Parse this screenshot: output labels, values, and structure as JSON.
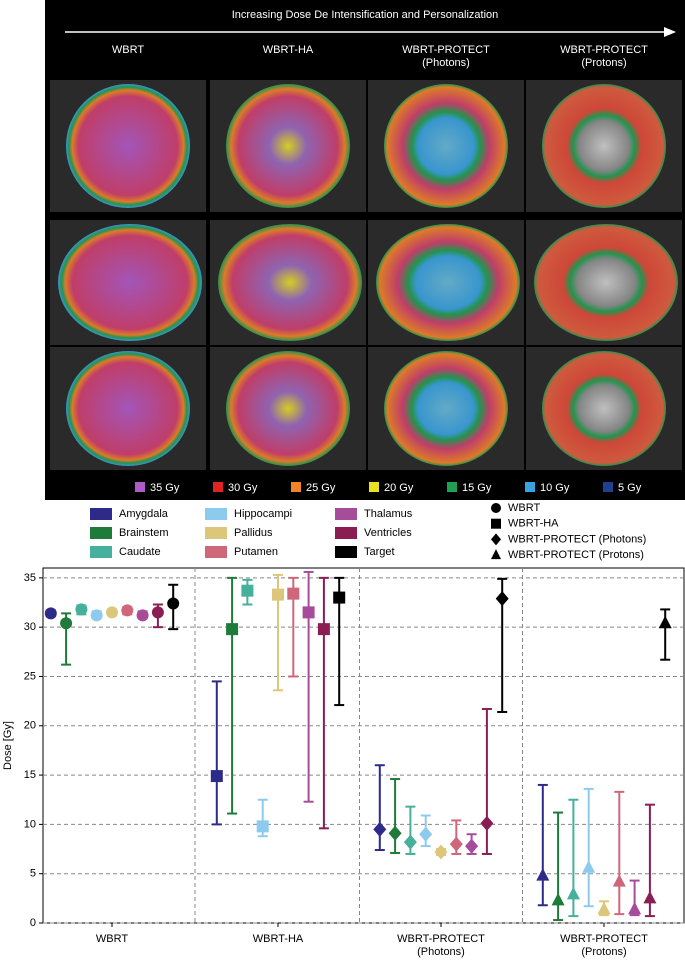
{
  "header": {
    "title": "Increasing Dose De Intensification and Personalization",
    "columns": [
      "WBRT",
      "WBRT-HA",
      "WBRT-PROTECT\n(Photons)",
      "WBRT-PROTECT\n(Protons)"
    ]
  },
  "dose_legend": [
    {
      "label": "35 Gy",
      "color": "#b05ac8"
    },
    {
      "label": "30 Gy",
      "color": "#e02222"
    },
    {
      "label": "25 Gy",
      "color": "#f08428"
    },
    {
      "label": "20 Gy",
      "color": "#e8e020"
    },
    {
      "label": "15 Gy",
      "color": "#22a052"
    },
    {
      "label": "10 Gy",
      "color": "#3aa2e0"
    },
    {
      "label": "5 Gy",
      "color": "#203f8f"
    }
  ],
  "chart_data": {
    "type": "errorbar",
    "y_label": "Dose [Gy]",
    "categories": [
      "WBRT",
      "WBRT-HA",
      "WBRT-PROTECT\n(Photons)",
      "WBRT-PROTECT\n(Protons)"
    ],
    "techniques": [
      {
        "name": "WBRT",
        "marker": "circle"
      },
      {
        "name": "WBRT-HA",
        "marker": "square"
      },
      {
        "name": "WBRT-PROTECT (Photons)",
        "marker": "diamond"
      },
      {
        "name": "WBRT-PROTECT (Protons)",
        "marker": "triangle"
      }
    ],
    "ylim": [
      0,
      36
    ],
    "yticks": [
      0,
      5,
      10,
      15,
      20,
      25,
      30,
      35
    ],
    "grid": true,
    "series": [
      {
        "name": "Amygdala",
        "color": "#2e2a8a",
        "values": [
          31.4,
          14.9,
          9.5,
          4.8
        ],
        "low": [
          31.1,
          10.0,
          7.4,
          1.8
        ],
        "high": [
          31.7,
          24.5,
          16.0,
          14.0
        ]
      },
      {
        "name": "Brainstem",
        "color": "#1e7b3a",
        "values": [
          30.4,
          29.8,
          9.1,
          2.3
        ],
        "low": [
          26.2,
          11.1,
          7.1,
          0.3
        ],
        "high": [
          31.4,
          35.0,
          14.6,
          11.2
        ]
      },
      {
        "name": "Caudate",
        "color": "#45b09c",
        "values": [
          31.8,
          33.7,
          8.2,
          2.9
        ],
        "low": [
          31.3,
          32.3,
          7.0,
          0.7
        ],
        "high": [
          32.2,
          34.8,
          11.8,
          12.5
        ]
      },
      {
        "name": "Hippocampi",
        "color": "#8ccbee",
        "values": [
          31.2,
          9.8,
          9.0,
          5.6
        ],
        "low": [
          30.9,
          8.8,
          7.8,
          1.7
        ],
        "high": [
          31.6,
          12.5,
          10.9,
          13.6
        ]
      },
      {
        "name": "Pallidus",
        "color": "#dcc67a",
        "values": [
          31.5,
          33.3,
          7.2,
          1.4
        ],
        "low": [
          31.2,
          23.6,
          6.9,
          0.8
        ],
        "high": [
          31.8,
          35.3,
          7.5,
          2.2
        ]
      },
      {
        "name": "Putamen",
        "color": "#d0667a",
        "values": [
          31.7,
          33.4,
          8.0,
          4.2
        ],
        "low": [
          31.3,
          25.0,
          7.0,
          0.9
        ],
        "high": [
          32.0,
          35.0,
          10.4,
          13.3
        ]
      },
      {
        "name": "Thalamus",
        "color": "#a74b9b",
        "values": [
          31.2,
          31.5,
          7.8,
          1.4
        ],
        "low": [
          30.9,
          12.3,
          7.0,
          0.8
        ],
        "high": [
          31.6,
          35.6,
          9.0,
          4.3
        ]
      },
      {
        "name": "Ventricles",
        "color": "#8a1e52",
        "values": [
          31.5,
          29.8,
          10.1,
          2.5
        ],
        "low": [
          30.0,
          9.6,
          7.0,
          0.7
        ],
        "high": [
          32.3,
          35.0,
          21.7,
          12.0
        ]
      },
      {
        "name": "Target",
        "color": "#000000",
        "values": [
          32.4,
          33.0,
          32.9,
          30.4
        ],
        "low": [
          29.8,
          22.1,
          21.4,
          26.7
        ],
        "high": [
          34.3,
          35.0,
          34.9,
          31.8
        ]
      }
    ]
  }
}
